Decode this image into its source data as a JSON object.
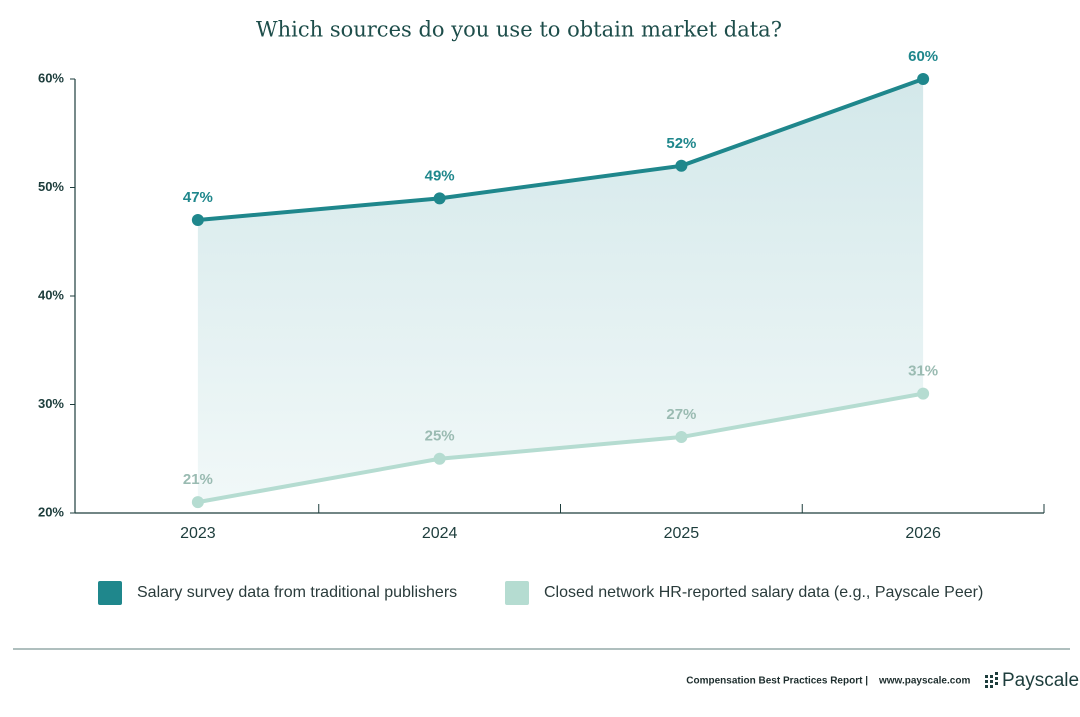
{
  "chart_data": {
    "type": "line",
    "title": "Which sources do you use to obtain market data?",
    "categories": [
      "2023",
      "2024",
      "2025",
      "2026"
    ],
    "series": [
      {
        "name": "Salary survey data from traditional publishers",
        "color": "#1f878c",
        "values": [
          47,
          49,
          52,
          60
        ],
        "value_labels": [
          "47%",
          "49%",
          "52%",
          "60%"
        ]
      },
      {
        "name": "Closed network HR-reported salary data (e.g., Payscale Peer)",
        "color": "#b5dcd1",
        "values": [
          21,
          25,
          27,
          31
        ],
        "value_labels": [
          "21%",
          "25%",
          "27%",
          "31%"
        ]
      }
    ],
    "ylim": [
      20,
      60
    ],
    "yticks": [
      {
        "value": 20,
        "label": "20%"
      },
      {
        "value": 30,
        "label": "30%"
      },
      {
        "value": 40,
        "label": "40%"
      },
      {
        "value": 50,
        "label": "50%"
      },
      {
        "value": 60,
        "label": "60%"
      }
    ],
    "grid": false,
    "legend": "bottom"
  },
  "footer": {
    "report": "Compensation Best Practices Report |",
    "url": "www.payscale.com",
    "brand": "Payscale"
  }
}
